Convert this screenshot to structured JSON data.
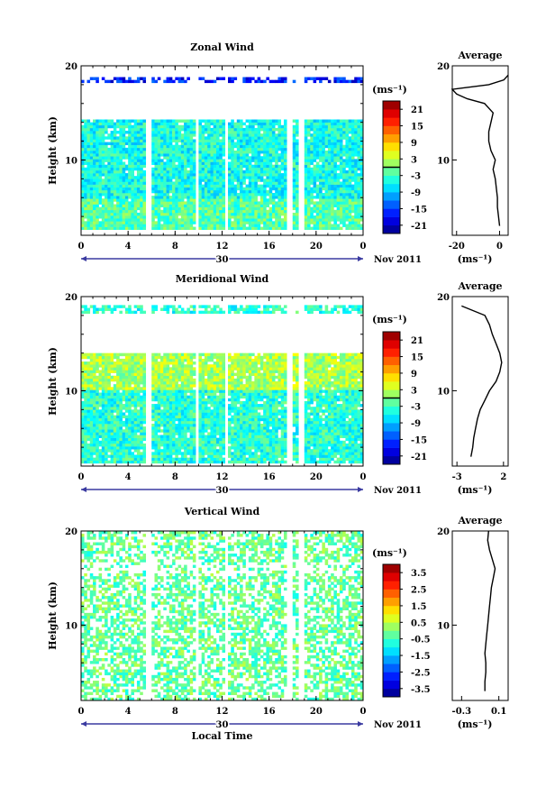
{
  "figure": {
    "date_label": "Nov 2011",
    "x_axis_label": "Local Time",
    "height_axis_label": "Height (km)",
    "unit_label": "(ms⁻¹)",
    "average_title": "Average"
  },
  "chart_data": [
    {
      "type": "heatmap",
      "title": "Zonal Wind",
      "xlabel": "",
      "ylabel": "Height (km)",
      "x_ticks": [
        "0",
        "4",
        "8",
        "12",
        "16",
        "20",
        "0"
      ],
      "y_ticks": [
        "20",
        "10"
      ],
      "xlim": [
        0,
        24
      ],
      "ylim": [
        2,
        20
      ],
      "day_label": "30",
      "colorbar": {
        "unit": "(ms⁻¹)",
        "ticks": [
          "21",
          "15",
          "9",
          "3",
          "-3",
          "-9",
          "-15",
          "-21"
        ],
        "range": [
          -24,
          24
        ],
        "contour_level": 0
      },
      "data_gaps_hours": [
        [
          5.6,
          5.9
        ],
        [
          9.7,
          10.0
        ],
        [
          12.3,
          12.6
        ],
        [
          17.6,
          17.9
        ],
        [
          18.6,
          19.0
        ]
      ],
      "description_levels": {
        "mean_field_value": -5
      },
      "profile": {
        "title": "Average",
        "xlabel": "(ms⁻¹)",
        "x_ticks": [
          "-20",
          "0"
        ],
        "xlim": [
          -22,
          4
        ],
        "height_km": [
          3,
          4,
          5,
          6,
          7,
          8,
          9,
          10,
          11,
          12,
          13,
          14,
          15,
          16,
          16.5,
          17,
          17.5,
          18,
          18.5,
          19
        ],
        "values": [
          0,
          -0.5,
          -1,
          -1,
          -1.5,
          -2,
          -3,
          -2,
          -4,
          -5,
          -5,
          -4,
          -3,
          -7,
          -15,
          -20,
          -22,
          -5,
          2,
          4
        ]
      }
    },
    {
      "type": "heatmap",
      "title": "Meridional Wind",
      "xlabel": "",
      "ylabel": "Height (km)",
      "x_ticks": [
        "0",
        "4",
        "8",
        "12",
        "16",
        "20",
        "0"
      ],
      "y_ticks": [
        "20",
        "10"
      ],
      "xlim": [
        0,
        24
      ],
      "ylim": [
        2,
        20
      ],
      "day_label": "30",
      "colorbar": {
        "unit": "(ms⁻¹)",
        "ticks": [
          "21",
          "15",
          "9",
          "3",
          "-3",
          "-9",
          "-15",
          "-21"
        ],
        "range": [
          -24,
          24
        ],
        "contour_level": 0
      },
      "data_gaps_hours": [
        [
          5.6,
          5.9
        ],
        [
          9.7,
          10.0
        ],
        [
          12.3,
          12.6
        ],
        [
          17.6,
          17.9
        ],
        [
          18.6,
          19.0
        ]
      ],
      "description_levels": {
        "mean_field_value": -4
      },
      "profile": {
        "title": "Average",
        "xlabel": "(ms⁻¹)",
        "x_ticks": [
          "-3",
          "2"
        ],
        "xlim": [
          -3.5,
          2.5
        ],
        "height_km": [
          3,
          4,
          5,
          6,
          7,
          8,
          9,
          10,
          11,
          12,
          13,
          14,
          15,
          16,
          17,
          18,
          19
        ],
        "values": [
          -1.5,
          -1.3,
          -1.2,
          -1.0,
          -0.8,
          -0.5,
          0.0,
          0.5,
          1.2,
          1.6,
          1.8,
          1.6,
          1.2,
          0.8,
          0.5,
          0.0,
          -2.5
        ]
      }
    },
    {
      "type": "heatmap",
      "title": "Vertical Wind",
      "xlabel": "Local Time",
      "ylabel": "Height (km)",
      "x_ticks": [
        "0",
        "4",
        "8",
        "12",
        "16",
        "20",
        "0"
      ],
      "y_ticks": [
        "20",
        "10"
      ],
      "xlim": [
        0,
        24
      ],
      "ylim": [
        2,
        20
      ],
      "day_label": "30",
      "colorbar": {
        "unit": "(ms⁻¹)",
        "ticks": [
          "3.5",
          "2.5",
          "1.5",
          "0.5",
          "-0.5",
          "-1.5",
          "-2.5",
          "-3.5"
        ],
        "range": [
          -4,
          4
        ]
      },
      "data_gaps_hours": [
        [
          5.6,
          5.9
        ],
        [
          9.7,
          10.0
        ],
        [
          12.3,
          12.6
        ],
        [
          17.6,
          17.9
        ],
        [
          18.6,
          19.0
        ]
      ],
      "description_levels": {
        "mean_field_value": -0.2
      },
      "profile": {
        "title": "Average",
        "xlabel": "(ms⁻¹)",
        "x_ticks": [
          "-0.3",
          "0.1"
        ],
        "xlim": [
          -0.4,
          0.2
        ],
        "height_km": [
          3,
          4,
          5,
          6,
          7,
          8,
          9,
          10,
          11,
          12,
          13,
          14,
          15,
          16,
          17,
          18,
          19,
          20
        ],
        "values": [
          -0.05,
          -0.05,
          -0.04,
          -0.04,
          -0.05,
          -0.04,
          -0.03,
          -0.02,
          -0.01,
          0.0,
          0.01,
          0.02,
          0.04,
          0.06,
          0.03,
          0.0,
          -0.02,
          -0.01
        ]
      }
    }
  ]
}
